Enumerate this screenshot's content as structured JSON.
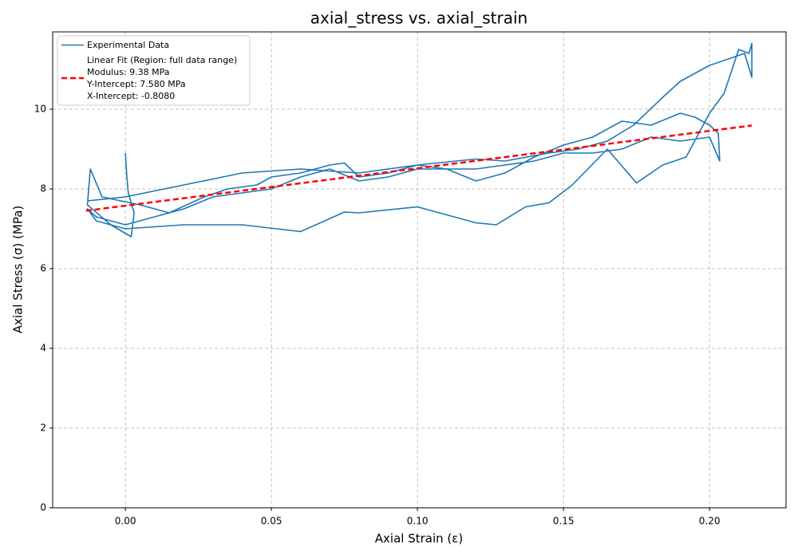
{
  "chart_data": {
    "type": "line",
    "title": "axial_stress vs. axial_strain",
    "x_label": "Axial Strain (ε)",
    "y_label": "Axial Stress (σ) (MPa)",
    "xlim": [
      -0.0249,
      0.2262
    ],
    "ylim": [
      0,
      11.94
    ],
    "xticks": [
      {
        "value": 0,
        "label": "0.00"
      },
      {
        "value": 0.05,
        "label": "0.05"
      },
      {
        "value": 0.1,
        "label": "0.10"
      },
      {
        "value": 0.15,
        "label": "0.15"
      },
      {
        "value": 0.2,
        "label": "0.20"
      }
    ],
    "yticks": [
      0,
      2,
      4,
      6,
      8,
      10
    ],
    "grid": true,
    "legend": "upper-left",
    "series": [
      {
        "name": "Experimental Data",
        "color": "#1f77b4",
        "linestyle": "solid",
        "x": [
          0.0,
          0.0005,
          0.001,
          0.003,
          0.002,
          -0.005,
          -0.013,
          -0.012,
          -0.008,
          0.005,
          0.015,
          0.027,
          0.035,
          0.045,
          0.05,
          0.06,
          0.07,
          0.075,
          0.08,
          0.09,
          0.1,
          0.11,
          0.12,
          0.125,
          0.13,
          0.14,
          0.15,
          0.16,
          0.17,
          0.18,
          0.19,
          0.195,
          0.2,
          0.203,
          0.2035,
          0.2,
          0.19,
          0.18,
          0.17,
          0.16,
          0.15,
          0.14,
          0.13,
          0.12,
          0.11,
          0.1,
          0.09,
          0.08,
          0.07,
          0.06,
          0.05,
          0.04,
          0.03,
          0.02,
          0.01,
          0.0,
          -0.01,
          -0.013,
          -0.01,
          0.0,
          0.02,
          0.04,
          0.06,
          0.075,
          0.08,
          0.1,
          0.12,
          0.127,
          0.137,
          0.145,
          0.153,
          0.165,
          0.175,
          0.184,
          0.192,
          0.2,
          0.205,
          0.21,
          0.2135,
          0.2145,
          0.2145,
          0.212,
          0.2,
          0.19,
          0.184,
          0.174,
          0.165,
          0.155,
          0.145,
          0.13,
          0.12,
          0.1,
          0.08,
          0.06,
          0.04,
          0.02,
          0.0,
          -0.013
        ],
        "values": [
          8.9,
          8.3,
          7.9,
          7.4,
          6.8,
          7.1,
          7.6,
          8.5,
          7.8,
          7.6,
          7.4,
          7.8,
          8.0,
          8.1,
          8.3,
          8.4,
          8.6,
          8.65,
          8.3,
          8.4,
          8.6,
          8.5,
          8.2,
          8.3,
          8.4,
          8.8,
          9.1,
          9.3,
          9.7,
          9.6,
          9.9,
          9.8,
          9.6,
          9.4,
          8.7,
          9.3,
          9.2,
          9.3,
          9.0,
          8.9,
          8.9,
          8.7,
          8.6,
          8.5,
          8.5,
          8.5,
          8.3,
          8.2,
          8.5,
          8.3,
          8.0,
          7.9,
          7.8,
          7.5,
          7.3,
          7.1,
          7.3,
          7.5,
          7.2,
          7.0,
          7.1,
          7.1,
          6.93,
          7.42,
          7.4,
          7.55,
          7.15,
          7.1,
          7.55,
          7.65,
          8.1,
          9.0,
          8.15,
          8.6,
          8.8,
          9.9,
          10.4,
          11.5,
          11.4,
          11.65,
          10.8,
          11.4,
          11.1,
          10.7,
          10.3,
          9.6,
          9.2,
          9.0,
          8.9,
          8.7,
          8.75,
          8.6,
          8.4,
          8.5,
          8.4,
          8.1,
          7.8,
          7.7
        ]
      },
      {
        "name": "Linear Fit (Region: full data range)\nModulus: 9.38 MPa\nY-Intercept: 7.580 MPa\nX-Intercept: -0.8080",
        "color": "#ff0000",
        "linestyle": "dashed",
        "x": [
          -0.0135,
          0.2145
        ],
        "values": [
          7.453,
          9.592
        ]
      }
    ]
  }
}
